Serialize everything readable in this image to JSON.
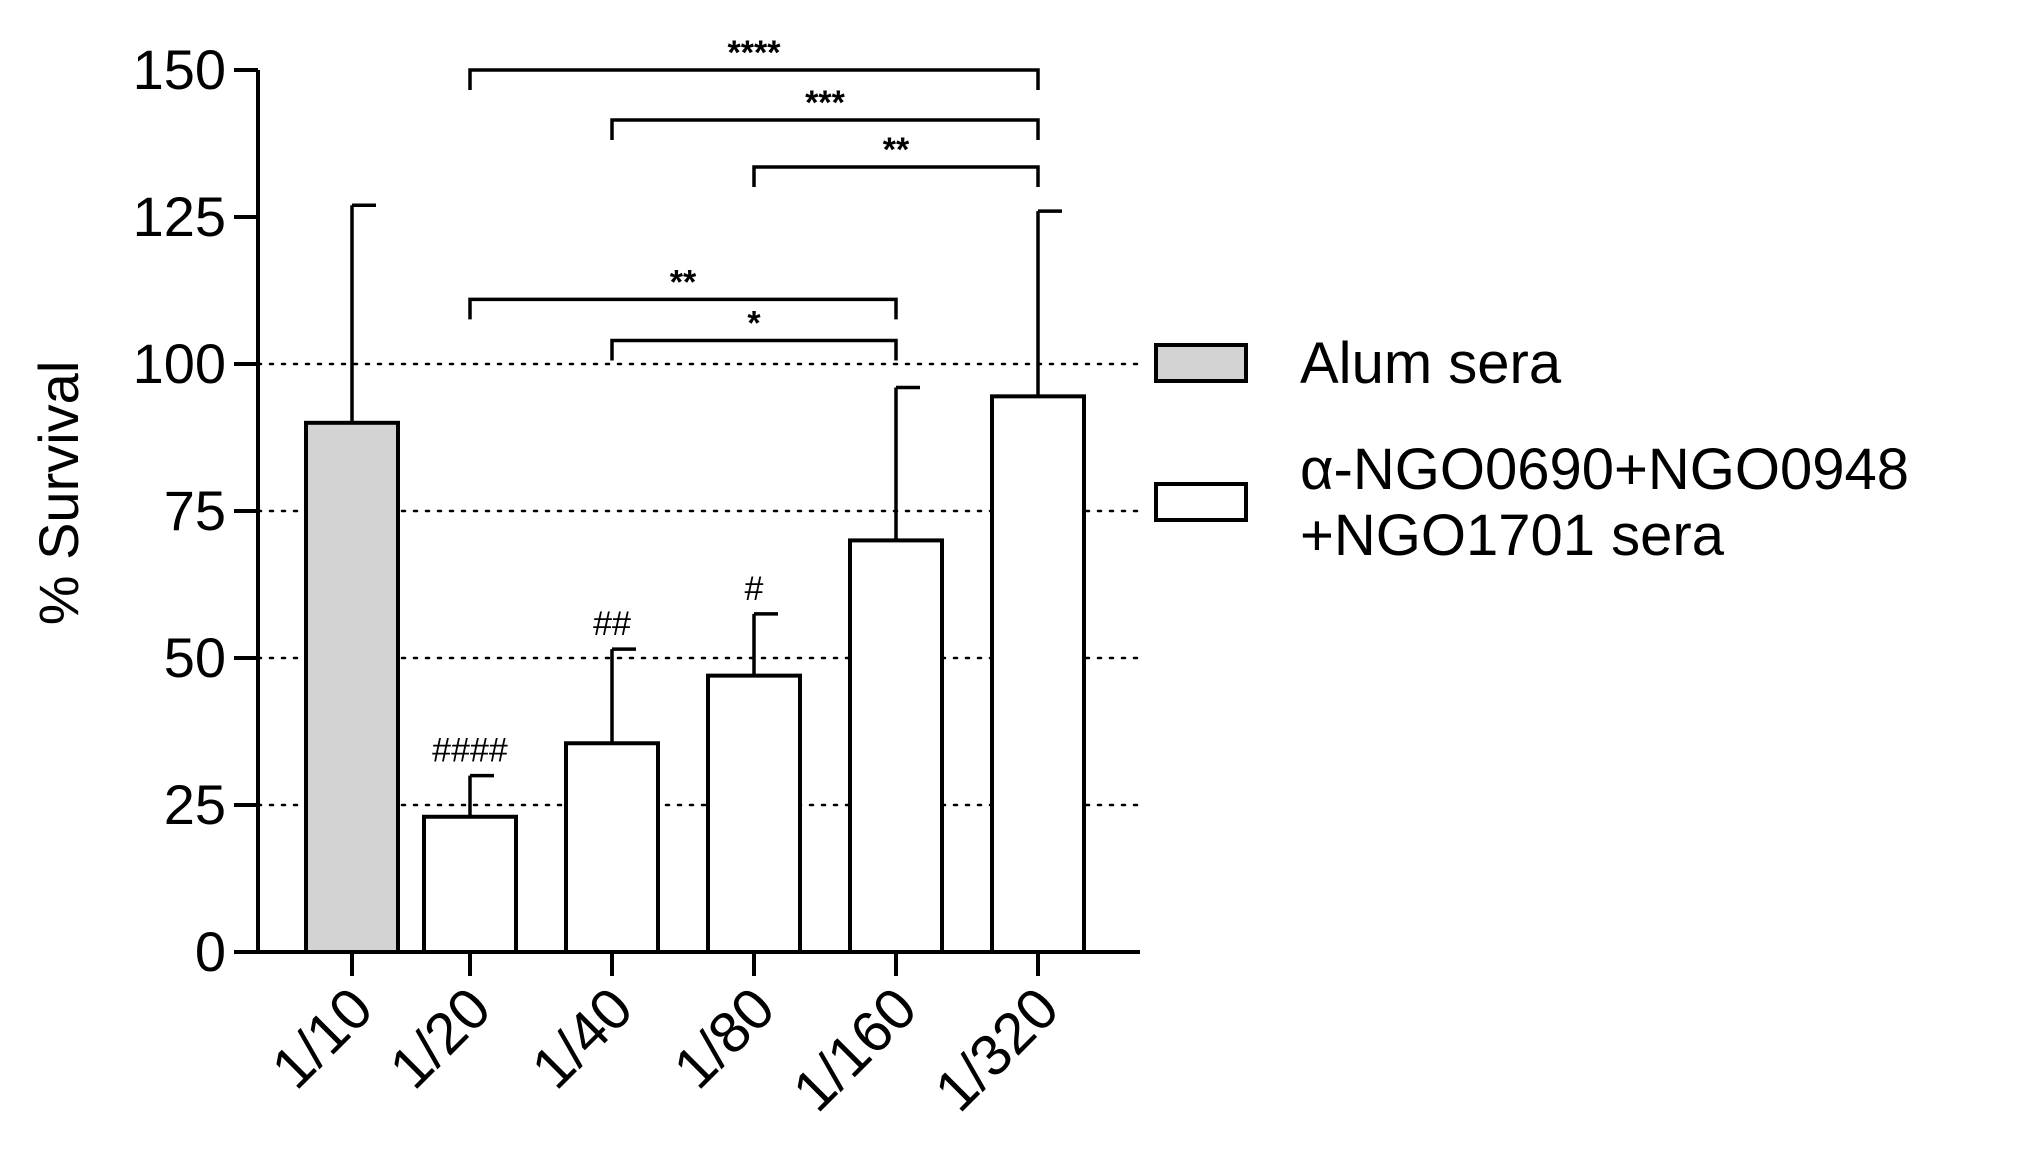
{
  "chart_data": {
    "type": "bar",
    "title": "",
    "xlabel": "",
    "ylabel": "% Survival",
    "ylim": [
      0,
      150
    ],
    "yticks": [
      0,
      25,
      50,
      75,
      100,
      125,
      150
    ],
    "reference_lines": [
      25,
      50,
      75,
      100
    ],
    "categories": [
      "1/10",
      "1/20",
      "1/40",
      "1/80",
      "1/160",
      "1/320"
    ],
    "values": [
      90,
      23,
      35.5,
      47,
      70,
      94.5
    ],
    "errors": [
      37,
      7,
      16,
      10.5,
      26,
      31.5
    ],
    "bar_group": [
      "Alum sera",
      "α-NGO0690+NGO0948+NGO1701 sera",
      "α-NGO0690+NGO0948+NGO1701 sera",
      "α-NGO0690+NGO0948+NGO1701 sera",
      "α-NGO0690+NGO0948+NGO1701 sera",
      "α-NGO0690+NGO0948+NGO1701 sera"
    ],
    "hash_marks": [
      "",
      "####",
      "##",
      "#",
      "",
      ""
    ],
    "series": [
      {
        "name": "Alum sera",
        "color": "#d3d3d3"
      },
      {
        "name": "α-NGO0690+NGO0948+NGO1701 sera",
        "color": "#ffffff"
      }
    ],
    "legend": {
      "placement": "right",
      "entries": [
        {
          "lines": [
            "Alum sera"
          ],
          "color": "#d3d3d3"
        },
        {
          "lines": [
            "α-NGO0690+NGO0948",
            "+NGO1701 sera"
          ],
          "color": "#ffffff"
        }
      ]
    },
    "significance": [
      {
        "from": "1/20",
        "to": "1/320",
        "level": 150,
        "label": "****"
      },
      {
        "from": "1/40",
        "to": "1/320",
        "level": 141.5,
        "label": "***"
      },
      {
        "from": "1/80",
        "to": "1/320",
        "level": 133.5,
        "label": "**"
      },
      {
        "from": "1/20",
        "to": "1/160",
        "level": 111,
        "label": "**"
      },
      {
        "from": "1/40",
        "to": "1/160",
        "level": 104,
        "label": "*"
      }
    ]
  }
}
